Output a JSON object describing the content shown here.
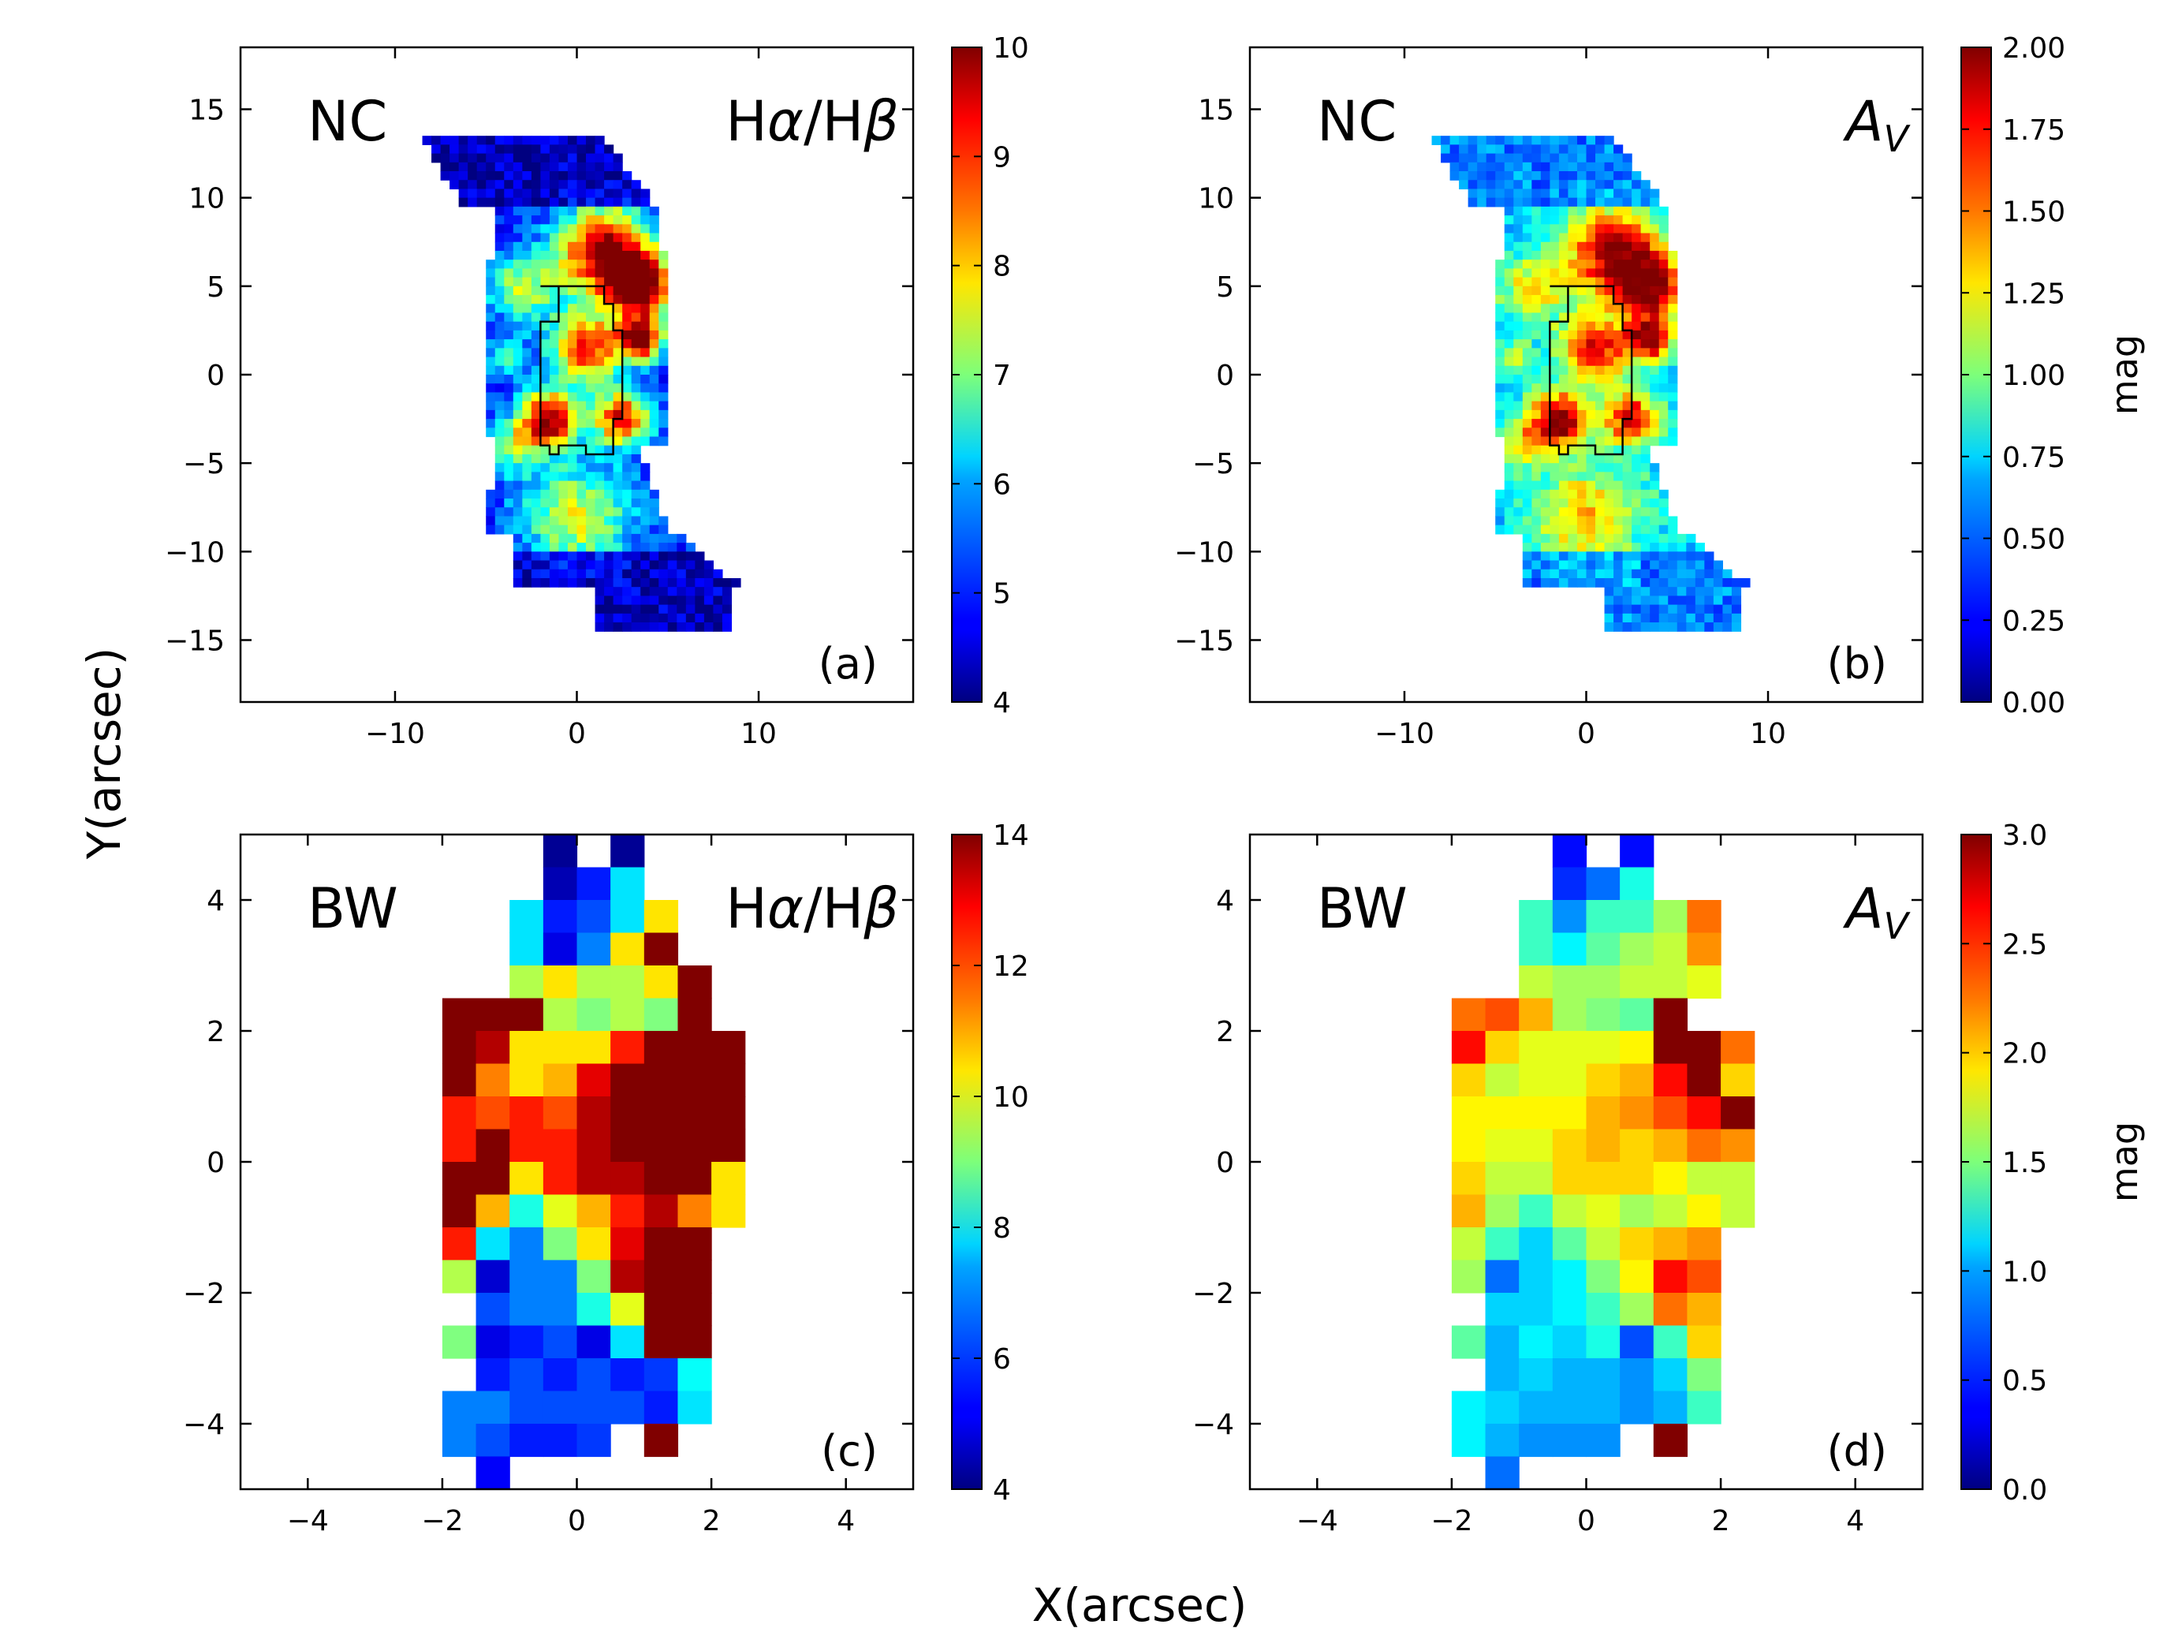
{
  "figure": {
    "xlabel": "X(arcsec)",
    "ylabel": "Y(arcsec)",
    "colormap": "jet"
  },
  "chart_data": [
    {
      "type": "heatmap",
      "id": "a",
      "region": "NC",
      "quantity": "Hα/Hβ",
      "panel_label": "(a)",
      "xlim": [
        -18.5,
        18.5
      ],
      "ylim": [
        -18.5,
        18.5
      ],
      "xticks": [
        -10,
        0,
        10
      ],
      "yticks": [
        -15,
        -10,
        -5,
        0,
        5,
        10,
        15
      ],
      "colorbar": {
        "range": [
          4,
          10
        ],
        "ticks": [
          4,
          5,
          6,
          7,
          8,
          9,
          10
        ],
        "label": ""
      },
      "map_extent_x": [
        -8.5,
        9
      ],
      "map_extent_y": [
        -14.5,
        13.5
      ],
      "contour": [
        [
          -2,
          5
        ],
        [
          1.5,
          5
        ],
        [
          1.5,
          4
        ],
        [
          2,
          4
        ],
        [
          2,
          2.5
        ],
        [
          2.5,
          2.5
        ],
        [
          2.5,
          -2.5
        ],
        [
          2.5,
          -2.5
        ],
        [
          2,
          -2.5
        ],
        [
          2,
          -4.5
        ],
        [
          0.5,
          -4.5
        ],
        [
          0.5,
          -4
        ],
        [
          -1,
          -4
        ],
        [
          -1,
          -4.5
        ],
        [
          -1.5,
          -4.5
        ],
        [
          -1.5,
          -4
        ],
        [
          -2,
          -4
        ],
        [
          -2,
          -3
        ],
        [
          -2,
          -2
        ],
        [
          -2,
          0
        ],
        [
          -2,
          2.5
        ],
        [
          -2,
          3
        ],
        [
          -1,
          3
        ],
        [
          -1,
          5
        ]
      ]
    },
    {
      "type": "heatmap",
      "id": "b",
      "region": "NC",
      "quantity": "A_V",
      "panel_label": "(b)",
      "xlim": [
        -18.5,
        18.5
      ],
      "ylim": [
        -18.5,
        18.5
      ],
      "xticks": [
        -10,
        0,
        10
      ],
      "yticks": [
        -15,
        -10,
        -5,
        0,
        5,
        10,
        15
      ],
      "colorbar": {
        "range": [
          0,
          2
        ],
        "ticks": [
          "0.00",
          "0.25",
          "0.50",
          "0.75",
          "1.00",
          "1.25",
          "1.50",
          "1.75",
          "2.00"
        ],
        "label": "mag"
      },
      "map_extent_x": [
        -8.5,
        9
      ],
      "map_extent_y": [
        -14.5,
        13.5
      ]
    },
    {
      "type": "heatmap",
      "id": "c",
      "region": "BW",
      "quantity": "Hα/Hβ",
      "panel_label": "(c)",
      "xlim": [
        -5,
        5
      ],
      "ylim": [
        -5,
        5
      ],
      "xticks": [
        -4,
        -2,
        0,
        2,
        4
      ],
      "yticks": [
        -4,
        -2,
        0,
        2,
        4
      ],
      "colorbar": {
        "range": [
          4,
          14
        ],
        "ticks": [
          4,
          6,
          8,
          10,
          12,
          14
        ],
        "label": ""
      },
      "grid_x0": -2.0,
      "grid_y_top": 5.0,
      "cell_size": 0.5,
      "cells": [
        [
          null,
          null,
          null,
          4.2,
          null,
          4.2,
          null,
          null,
          null
        ],
        [
          null,
          null,
          null,
          4.5,
          5.5,
          7.5,
          null,
          null,
          null
        ],
        [
          null,
          null,
          7.5,
          5.5,
          6,
          7.5,
          10.5,
          null,
          null
        ],
        [
          null,
          null,
          7.5,
          5,
          6.5,
          10.5,
          14,
          null,
          null
        ],
        [
          null,
          null,
          9.5,
          10.5,
          9.5,
          9.5,
          10.5,
          14,
          null
        ],
        [
          14,
          14,
          14,
          9.5,
          9,
          9.5,
          9,
          14,
          null
        ],
        [
          14,
          13.5,
          10.5,
          10.5,
          10.5,
          12.5,
          14,
          14,
          14
        ],
        [
          14,
          11.5,
          10.5,
          11,
          13,
          14,
          14,
          14,
          14
        ],
        [
          12.5,
          12,
          12.5,
          12,
          13.5,
          14,
          14,
          14,
          14
        ],
        [
          12.5,
          14,
          12.5,
          12.5,
          13.5,
          14,
          14,
          14,
          14
        ],
        [
          14,
          14,
          10.5,
          12.5,
          13.5,
          13.5,
          14,
          14,
          10.5
        ],
        [
          14,
          11,
          8,
          10,
          11,
          12.5,
          13.5,
          11.5,
          10.5
        ],
        [
          12.5,
          7.5,
          6.5,
          9,
          10.5,
          13,
          14,
          14,
          null
        ],
        [
          9.5,
          4.8,
          6.5,
          6.5,
          9,
          13.5,
          14,
          14,
          null
        ],
        [
          null,
          6,
          6.5,
          6.5,
          8,
          10,
          14,
          14,
          null
        ],
        [
          9,
          5,
          5.5,
          6,
          5,
          7.5,
          14,
          14,
          null
        ],
        [
          null,
          5.5,
          6,
          5.5,
          6,
          5.5,
          5.8,
          7.8,
          null
        ],
        [
          6.5,
          6.5,
          6,
          6,
          6,
          6,
          5.5,
          7.5,
          null
        ],
        [
          6.5,
          6,
          5.5,
          5.5,
          5.8,
          null,
          14,
          null,
          null
        ],
        [
          null,
          5.2,
          null,
          null,
          null,
          null,
          null,
          null,
          null
        ]
      ]
    },
    {
      "type": "heatmap",
      "id": "d",
      "region": "BW",
      "quantity": "A_V",
      "panel_label": "(d)",
      "xlim": [
        -5,
        5
      ],
      "ylim": [
        -5,
        5
      ],
      "xticks": [
        -4,
        -2,
        0,
        2,
        4
      ],
      "yticks": [
        -4,
        -2,
        0,
        2,
        4
      ],
      "colorbar": {
        "range": [
          0,
          3
        ],
        "ticks": [
          "0.0",
          "0.5",
          "1.0",
          "1.5",
          "2.0",
          "2.5",
          "3.0"
        ],
        "label": "mag"
      },
      "grid_x0": -2.0,
      "grid_y_top": 5.0,
      "cell_size": 0.5,
      "cells": [
        [
          null,
          null,
          null,
          0.4,
          null,
          0.4,
          null,
          null,
          null
        ],
        [
          null,
          null,
          null,
          0.5,
          0.7,
          1.2,
          null,
          null,
          null
        ],
        [
          null,
          null,
          1.3,
          0.8,
          1.3,
          1.3,
          1.6,
          2.3,
          null
        ],
        [
          null,
          null,
          1.3,
          1.1,
          1.4,
          1.6,
          1.7,
          2.2,
          null
        ],
        [
          null,
          null,
          1.7,
          1.6,
          1.6,
          1.7,
          1.7,
          1.8,
          null
        ],
        [
          2.3,
          2.4,
          2.1,
          1.6,
          1.5,
          1.4,
          3.0,
          null,
          null
        ],
        [
          2.6,
          2.0,
          1.8,
          1.8,
          1.8,
          1.9,
          3.0,
          3.0,
          2.3
        ],
        [
          2.0,
          1.7,
          1.8,
          1.8,
          2.0,
          2.1,
          2.6,
          3.0,
          2.0
        ],
        [
          1.9,
          1.9,
          1.9,
          1.9,
          2.1,
          2.2,
          2.4,
          2.6,
          3.0
        ],
        [
          1.9,
          1.8,
          1.8,
          2.0,
          2.1,
          2.0,
          2.1,
          2.3,
          2.2
        ],
        [
          2.0,
          1.7,
          1.7,
          2.0,
          2.0,
          2.0,
          1.9,
          1.7,
          1.7
        ],
        [
          2.1,
          1.6,
          1.3,
          1.7,
          1.8,
          1.6,
          1.7,
          1.9,
          1.7
        ],
        [
          1.7,
          1.3,
          1.0,
          1.4,
          1.7,
          2.0,
          2.1,
          2.2,
          null
        ],
        [
          1.6,
          0.7,
          1.0,
          1.1,
          1.5,
          1.9,
          2.6,
          2.4,
          null
        ],
        [
          null,
          1.0,
          1.0,
          1.1,
          1.3,
          1.6,
          2.3,
          2.1,
          null
        ],
        [
          1.4,
          0.9,
          1.1,
          1.0,
          1.2,
          0.6,
          1.3,
          2.0,
          null
        ],
        [
          null,
          0.9,
          1.0,
          0.9,
          0.9,
          0.8,
          1.0,
          1.5,
          null
        ],
        [
          1.1,
          1.0,
          0.9,
          0.9,
          0.9,
          0.8,
          0.9,
          1.3,
          null
        ],
        [
          1.1,
          0.9,
          0.8,
          0.8,
          0.8,
          null,
          3.0,
          null,
          null
        ],
        [
          null,
          0.7,
          null,
          null,
          null,
          null,
          null,
          null,
          null
        ]
      ]
    }
  ]
}
